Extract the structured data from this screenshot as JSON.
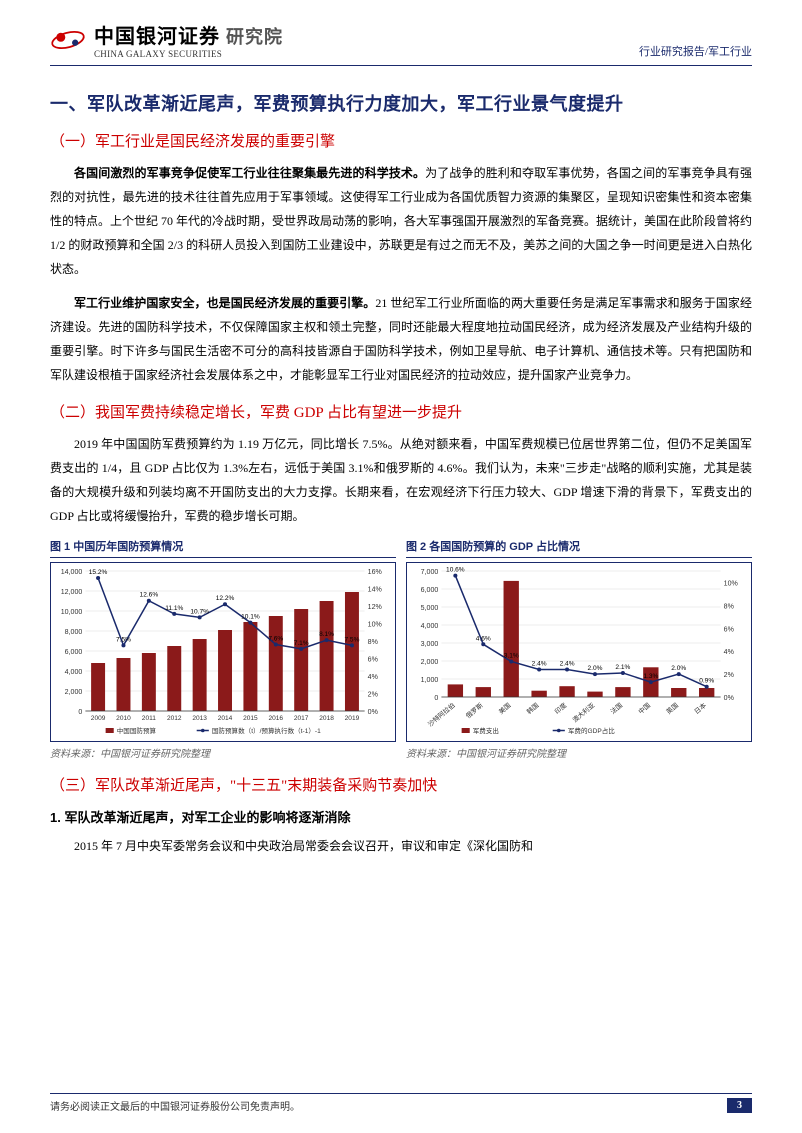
{
  "header": {
    "company_cn": "中国银河证券",
    "company_en": "CHINA GALAXY SECURITIES",
    "division": "研究院",
    "breadcrumb": "行业研究报告/军工行业"
  },
  "h1": "一、军队改革渐近尾声，军费预算执行力度加大，军工行业景气度提升",
  "s1": {
    "title": "（一）军工行业是国民经济发展的重要引擎",
    "p1_lead": "各国间激烈的军事竞争促使军工行业往往聚集最先进的科学技术。",
    "p1_rest": "为了战争的胜利和夺取军事优势，各国之间的军事竞争具有强烈的对抗性，最先进的技术往往首先应用于军事领域。这使得军工行业成为各国优质智力资源的集聚区，呈现知识密集性和资本密集性的特点。上个世纪 70 年代的冷战时期，受世界政局动荡的影响，各大军事强国开展激烈的军备竞赛。据统计，美国在此阶段曾将约 1/2 的财政预算和全国 2/3 的科研人员投入到国防工业建设中，苏联更是有过之而无不及，美苏之间的大国之争一时间更是进入白热化状态。",
    "p2_lead": "军工行业维护国家安全，也是国民经济发展的重要引擎。",
    "p2_rest": "21 世纪军工行业所面临的两大重要任务是满足军事需求和服务于国家经济建设。先进的国防科学技术，不仅保障国家主权和领土完整，同时还能最大程度地拉动国民经济，成为经济发展及产业结构升级的重要引擎。时下许多与国民生活密不可分的高科技皆源自于国防科学技术，例如卫星导航、电子计算机、通信技术等。只有把国防和军队建设根植于国家经济社会发展体系之中，才能彰显军工行业对国民经济的拉动效应，提升国家产业竞争力。"
  },
  "s2": {
    "title": "（二）我国军费持续稳定增长，军费 GDP 占比有望进一步提升",
    "p1": "2019 年中国国防军费预算约为 1.19 万亿元，同比增长 7.5%。从绝对额来看，中国军费规模已位居世界第二位，但仍不足美国军费支出的 1/4，且 GDP 占比仅为 1.3%左右，远低于美国 3.1%和俄罗斯的 4.6%。我们认为，未来\"三步走\"战略的顺利实施，尤其是装备的大规模升级和列装均离不开国防支出的大力支撑。长期来看，在宏观经济下行压力较大、GDP 增速下滑的背景下，军费支出的 GDP 占比或将缓慢抬升，军费的稳步增长可期。"
  },
  "chart1": {
    "title": "图 1 中国历年国防预算情况",
    "type": "bar-line",
    "x_labels": [
      "2009",
      "2010",
      "2011",
      "2012",
      "2013",
      "2014",
      "2015",
      "2016",
      "2017",
      "2018",
      "2019"
    ],
    "bar_values": [
      4800,
      5300,
      5800,
      6500,
      7200,
      8100,
      8900,
      9500,
      10200,
      11000,
      11900
    ],
    "line_values": [
      15.2,
      7.5,
      12.6,
      11.1,
      10.7,
      12.2,
      10.1,
      7.6,
      7.1,
      8.1,
      7.5
    ],
    "line_labels": [
      "15.2%",
      "7.5%",
      "12.6%",
      "11.1%",
      "10.7%",
      "12.2%",
      "10.1%",
      "7.6%",
      "7.1%",
      "8.1%",
      "7.5%"
    ],
    "y1_max": 14000,
    "y1_step": 2000,
    "y2_max": 16,
    "y2_step": 2,
    "bar_color": "#8b1a1a",
    "line_color": "#1a2a6c",
    "legend": [
      "中国国防预算",
      "国防预算数（t）/预算执行数（t-1）-1"
    ],
    "source": "资料来源：中国银河证券研究院整理"
  },
  "chart2": {
    "title": "图 2 各国国防预算的 GDP 占比情况",
    "type": "bar-line",
    "x_labels": [
      "沙特阿拉伯",
      "俄罗斯",
      "美国",
      "韩国",
      "印度",
      "澳大利亚",
      "法国",
      "中国",
      "英国",
      "日本"
    ],
    "bar_values": [
      700,
      550,
      6450,
      350,
      600,
      300,
      550,
      1650,
      500,
      500
    ],
    "line_values": [
      10.6,
      4.6,
      3.1,
      2.4,
      2.4,
      2.0,
      2.1,
      1.3,
      2.0,
      0.9
    ],
    "line_labels": [
      "10.6%",
      "4.6%",
      "3.1%",
      "2.4%",
      "2.4%",
      "2.0%",
      "2.1%",
      "1.3%",
      "2.0%",
      "0.9%"
    ],
    "extra_label": "1.2%",
    "y1_max": 7000,
    "y1_step": 1000,
    "y2_max": 11,
    "y2_step": 2,
    "bar_color": "#8b1a1a",
    "line_color": "#1a2a6c",
    "legend": [
      "军费支出",
      "军费的GDP占比"
    ],
    "source": "资料来源：中国银河证券研究院整理"
  },
  "s3": {
    "title": "（三）军队改革渐近尾声，\"十三五\"末期装备采购节奏加快",
    "sub1_title": "1. 军队改革渐近尾声，对军工企业的影响将逐渐消除",
    "sub1_p1": "2015 年 7 月中央军委常务会议和中央政治局常委会会议召开，审议和审定《深化国防和"
  },
  "footer": {
    "disclaimer": "请务必阅读正文最后的中国银河证券股份公司免责声明。",
    "page": "3"
  },
  "colors": {
    "brand_blue": "#1a2a6c",
    "accent_red": "#cc0000",
    "bar_red": "#8b1a1a"
  }
}
